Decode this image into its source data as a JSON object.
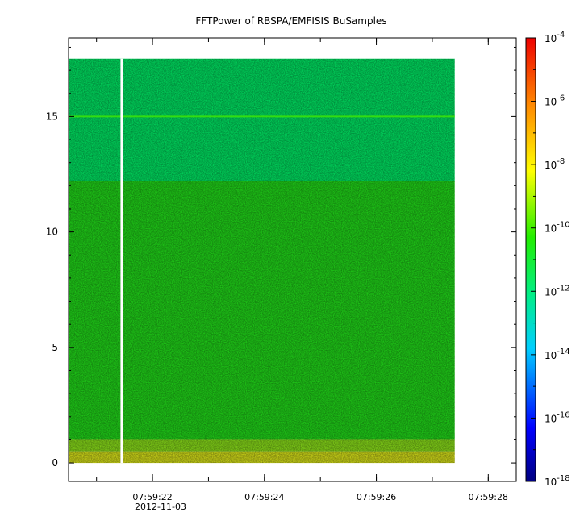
{
  "chart_data": {
    "type": "heatmap",
    "title": "FFTPower of RBSPA/EMFISIS  BuSamples",
    "xlabel": "",
    "ylabel": "",
    "x_axis": {
      "type": "time",
      "range": [
        "07:59:20.5",
        "07:59:28.5"
      ],
      "major_ticks": [
        "07:59:22",
        "07:59:24",
        "07:59:26",
        "07:59:28"
      ],
      "date_label": "2012-11-03",
      "minor_tick_interval_s": 1
    },
    "y_axis": {
      "range": [
        -0.8,
        18.4
      ],
      "ticks": [
        "0",
        "5",
        "10",
        "15"
      ]
    },
    "colorbar": {
      "scale": "log",
      "range": [
        1e-18,
        0.0001
      ],
      "colormap": "rainbow (dark blue to red)",
      "tick_labels": [
        {
          "base": "10",
          "exp": "-4"
        },
        {
          "base": "10",
          "exp": "-6"
        },
        {
          "base": "10",
          "exp": "-8"
        },
        {
          "base": "10",
          "exp": "-10"
        },
        {
          "base": "10",
          "exp": "-12"
        },
        {
          "base": "10",
          "exp": "-14"
        },
        {
          "base": "10",
          "exp": "-16"
        },
        {
          "base": "10",
          "exp": "-18"
        }
      ]
    },
    "data_time_range": [
      "07:59:20.5",
      "07:59:27.4"
    ],
    "data_gap_time": "07:59:21.45",
    "data_y_range": [
      0,
      17.5
    ],
    "bands": [
      {
        "y_range": [
          12.2,
          17.5
        ],
        "log10_power": -11.3
      },
      {
        "y_range": [
          1.0,
          12.2
        ],
        "log10_power": -10.0
      },
      {
        "y_range": [
          0.5,
          1.0
        ],
        "log10_power": -9.3
      },
      {
        "y_range": [
          0.0,
          0.5
        ],
        "log10_power": -8.6
      }
    ],
    "line_features": [
      {
        "y": 15.0,
        "log10_power": -10.2
      }
    ],
    "colors": {
      "upper_band": "#00ee66",
      "middle_band": "#22e01a",
      "low_band": "#8ee61a",
      "lowest_band": "#dde81a"
    }
  }
}
